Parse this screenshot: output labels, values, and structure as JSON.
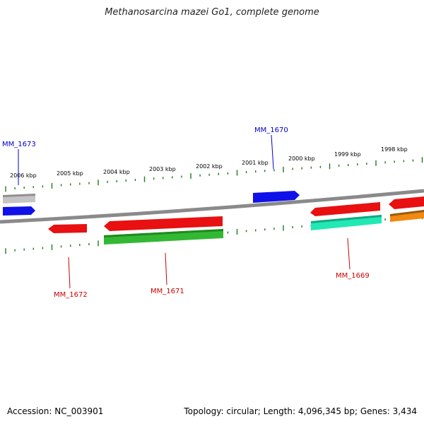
{
  "title": "Methanosarcina mazei Go1, complete genome",
  "footer": {
    "accession": "Accession: NC_003901",
    "stats": "Topology: circular; Length: 4,096,345 bp; Genes: 3,434"
  },
  "colors": {
    "backbone": "#8a8a8a",
    "tick": "#1e7a1e",
    "blue": "#1010e8",
    "red": "#e81010",
    "green": "#33b833",
    "teal": "#22e8b4",
    "orange": "#f08a10",
    "gray": "#c4c4c4",
    "label_blue": "#0000cc",
    "label_red": "#cc0000"
  },
  "kbp_labels": [
    "2006 kbp",
    "2005 kbp",
    "2004 kbp",
    "2003 kbp",
    "2002 kbp",
    "2001 kbp",
    "2000 kbp",
    "1999 kbp",
    "1998 kbp"
  ],
  "gene_labels": {
    "mm1673": "MM_1673",
    "mm1670": "MM_1670",
    "mm1672": "MM_1672",
    "mm1671": "MM_1671",
    "mm1669": "MM_1669"
  }
}
